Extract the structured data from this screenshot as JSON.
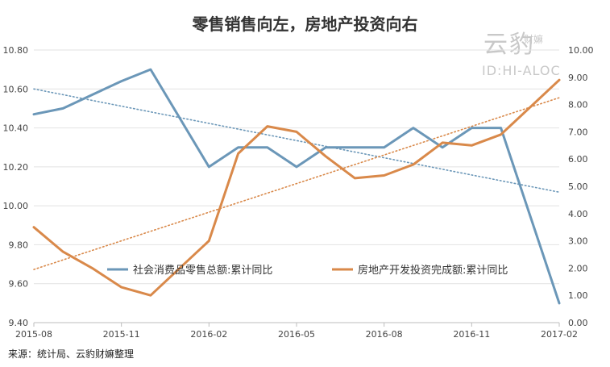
{
  "chart_data": {
    "type": "line",
    "title": "零售销售向左，房地产投资向右",
    "source": "来源：统计局、云豹财嫲整理",
    "watermark": {
      "brand": "云豹",
      "sub": "财嫲",
      "id": "ID:HI-ALOC"
    },
    "x": [
      "2015-08",
      "2015-09",
      "2015-10",
      "2015-11",
      "2015-12",
      "2016-01",
      "2016-02",
      "2016-03",
      "2016-04",
      "2016-05",
      "2016-06",
      "2016-07",
      "2016-08",
      "2016-09",
      "2016-10",
      "2016-11",
      "2016-12",
      "2017-02"
    ],
    "x_tick_labels": [
      "2015-08",
      "2015-11",
      "2016-02",
      "2016-05",
      "2016-08",
      "2016-11",
      "2017-02"
    ],
    "y_left": {
      "ticks": [
        "9.40",
        "9.60",
        "9.80",
        "10.00",
        "10.20",
        "10.40",
        "10.60",
        "10.80"
      ],
      "lim": [
        9.4,
        10.8
      ]
    },
    "y_right": {
      "ticks": [
        "0.00",
        "1.00",
        "2.00",
        "3.00",
        "4.00",
        "5.00",
        "6.00",
        "7.00",
        "8.00",
        "9.00",
        "10.00"
      ],
      "lim": [
        0,
        10
      ]
    },
    "series": [
      {
        "name": "社会消费品零售总额:累计同比",
        "axis": "left",
        "color": "#6b97b8",
        "values": [
          10.47,
          10.5,
          10.57,
          10.64,
          10.7,
          null,
          10.2,
          10.3,
          10.3,
          10.2,
          10.3,
          10.3,
          10.3,
          10.4,
          10.3,
          10.4,
          10.4,
          9.5
        ]
      },
      {
        "name": "房地产开发投资完成额:累计同比",
        "axis": "right",
        "color": "#d9894a",
        "values": [
          3.5,
          2.6,
          2.0,
          1.3,
          1.0,
          null,
          3.0,
          6.2,
          7.2,
          7.0,
          6.1,
          5.3,
          5.4,
          5.8,
          6.6,
          6.5,
          6.9,
          8.9
        ]
      }
    ],
    "trendlines": [
      {
        "of": "社会消费品零售总额:累计同比",
        "axis": "left",
        "color": "#6b97b8",
        "from": 10.6,
        "to": 10.07
      },
      {
        "of": "房地产开发投资完成额:累计同比",
        "axis": "right",
        "color": "#d9894a",
        "from": 1.95,
        "to": 8.25
      }
    ],
    "legend": "bottom-center (inside plot)",
    "grid": true
  }
}
